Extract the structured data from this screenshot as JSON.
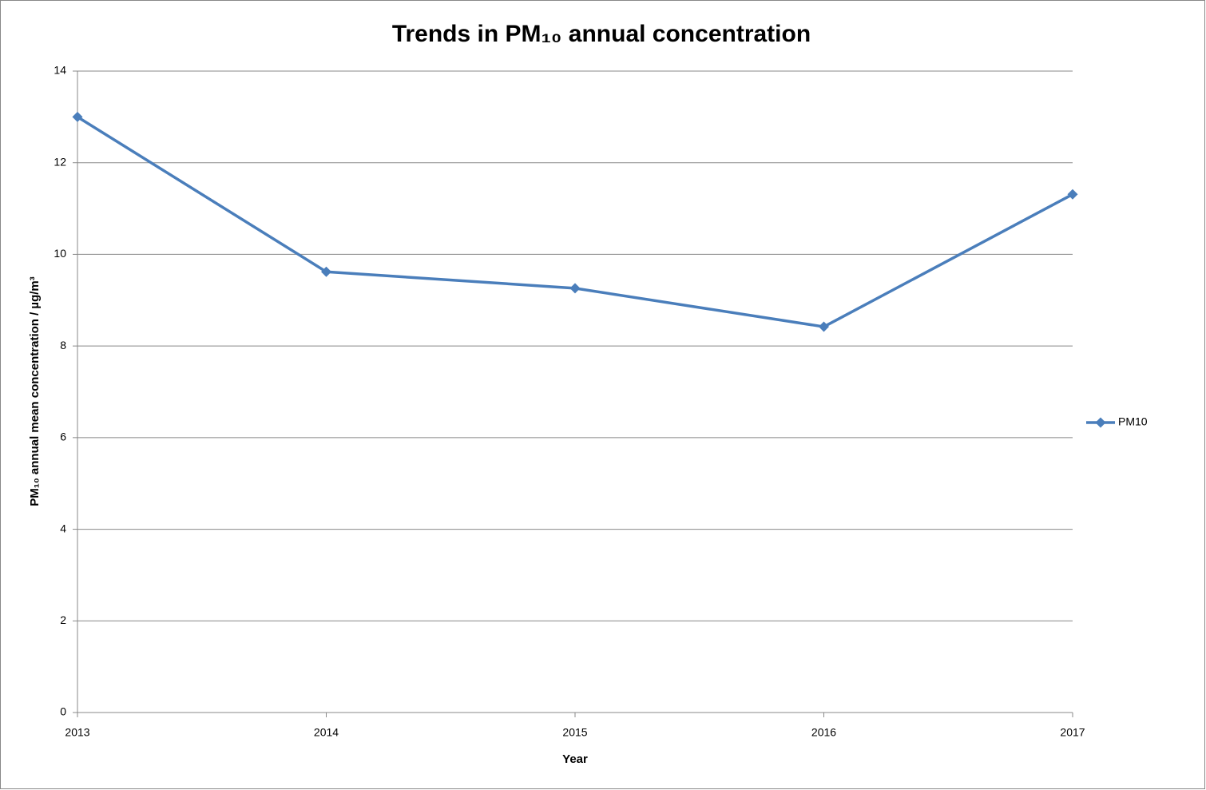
{
  "chart_data": {
    "type": "line",
    "title": "Trends in PM₁₀ annual concentration",
    "x_label": "Year",
    "y_label": "PM₁₀ annual mean concentration / µg/m³",
    "x": [
      2013,
      2014,
      2015,
      2016,
      2017
    ],
    "series": [
      {
        "name": "PM10",
        "color": "#4a7ebb",
        "values": [
          13.0,
          9.62,
          9.26,
          8.42,
          11.31
        ]
      }
    ],
    "xlim": [
      2013,
      2017
    ],
    "xticks": [
      2013,
      2014,
      2015,
      2016,
      2017
    ],
    "ylim": [
      0,
      14
    ],
    "yticks": [
      0,
      2,
      4,
      6,
      8,
      10,
      12,
      14
    ],
    "grid": true,
    "legend": "right"
  }
}
